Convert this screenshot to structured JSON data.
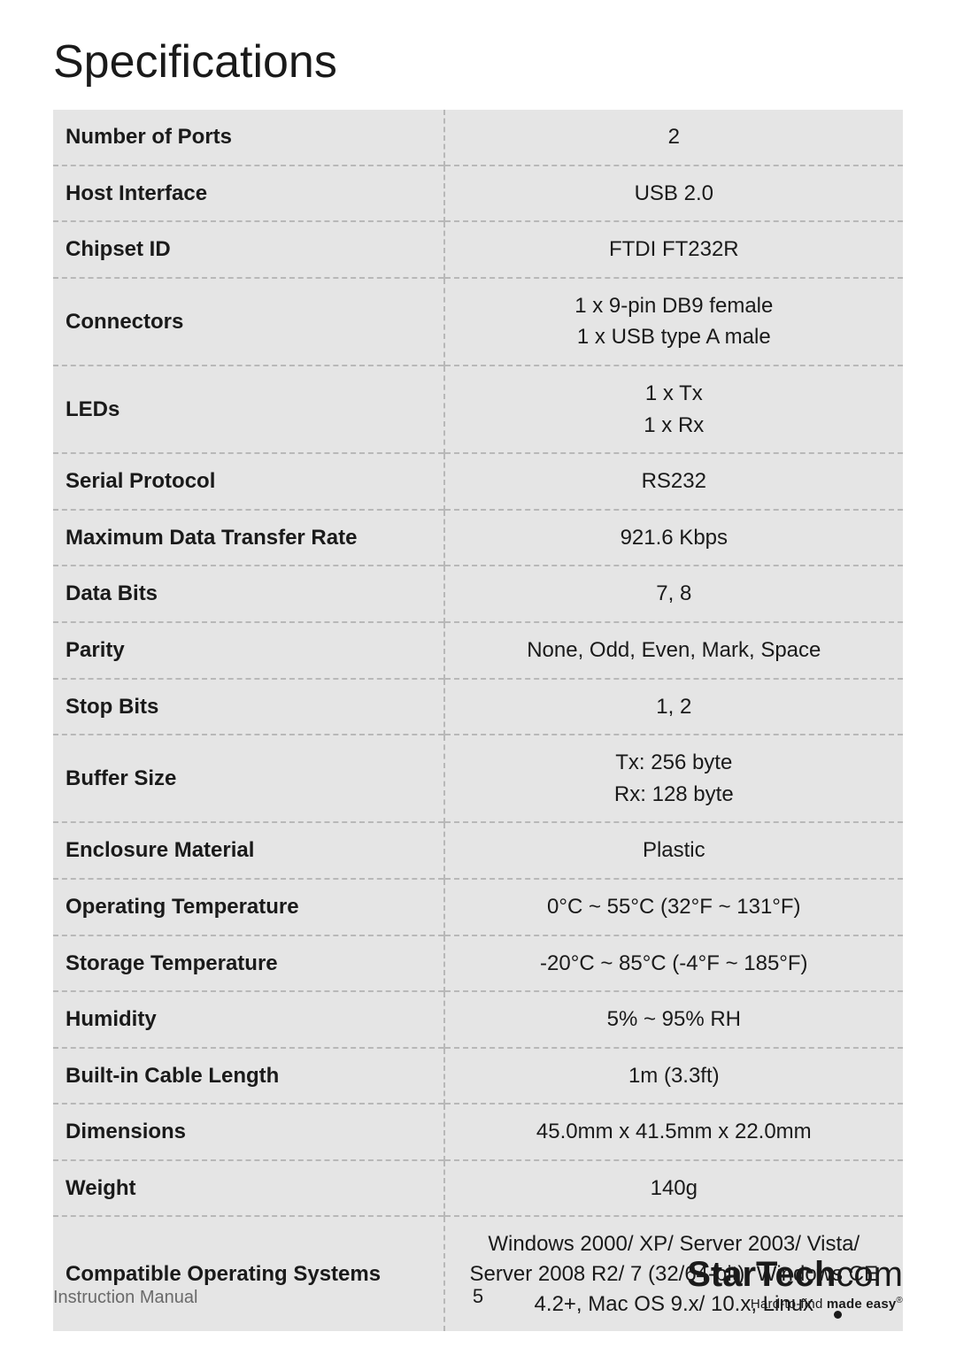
{
  "title": "Specifications",
  "table": {
    "background_color": "#e5e5e5",
    "divider_color": "#b8b8b8",
    "divider_style": "dashed",
    "label_fontweight": 700,
    "value_align": "center",
    "font_size": 24,
    "rows": [
      {
        "label": "Number of Ports",
        "values": [
          "2"
        ]
      },
      {
        "label": "Host Interface",
        "values": [
          "USB 2.0"
        ]
      },
      {
        "label": "Chipset ID",
        "values": [
          "FTDI FT232R"
        ]
      },
      {
        "label": "Connectors",
        "values": [
          "1 x 9-pin DB9 female",
          "1 x USB type A male"
        ]
      },
      {
        "label": "LEDs",
        "values": [
          "1 x Tx",
          "1 x Rx"
        ]
      },
      {
        "label": "Serial Protocol",
        "values": [
          "RS232"
        ]
      },
      {
        "label": "Maximum Data Transfer Rate",
        "values": [
          "921.6 Kbps"
        ]
      },
      {
        "label": "Data Bits",
        "values": [
          "7, 8"
        ]
      },
      {
        "label": "Parity",
        "values": [
          "None, Odd, Even, Mark, Space"
        ]
      },
      {
        "label": "Stop Bits",
        "values": [
          "1, 2"
        ]
      },
      {
        "label": "Buffer Size",
        "values": [
          "Tx: 256 byte",
          "Rx: 128 byte"
        ]
      },
      {
        "label": "Enclosure Material",
        "values": [
          "Plastic"
        ]
      },
      {
        "label": "Operating Temperature",
        "values": [
          "0°C ~ 55°C (32°F ~ 131°F)"
        ]
      },
      {
        "label": "Storage Temperature",
        "values": [
          "-20°C ~ 85°C (-4°F ~ 185°F)"
        ]
      },
      {
        "label": "Humidity",
        "values": [
          "5% ~ 95% RH"
        ]
      },
      {
        "label": "Built-in Cable Length",
        "values": [
          "1m (3.3ft)"
        ]
      },
      {
        "label": "Dimensions",
        "values": [
          "45.0mm x 41.5mm x 22.0mm"
        ]
      },
      {
        "label": "Weight",
        "values": [
          "140g"
        ]
      },
      {
        "label": "Compatible Operating Systems",
        "values": [
          "Windows 2000/ XP/ Server 2003/ Vista/ Server 2008 R2/ 7 (32/64-bit), Windows CE 4.2+, Mac OS 9.x/ 10.x, Linux"
        ]
      }
    ]
  },
  "footer": {
    "left_text": "Instruction Manual",
    "page_number": "5",
    "brand_bold": "StarTech",
    "brand_light": "com",
    "tagline_prefix": "Hard-to-find ",
    "tagline_bold": "made easy",
    "tagline_reg": "®"
  }
}
